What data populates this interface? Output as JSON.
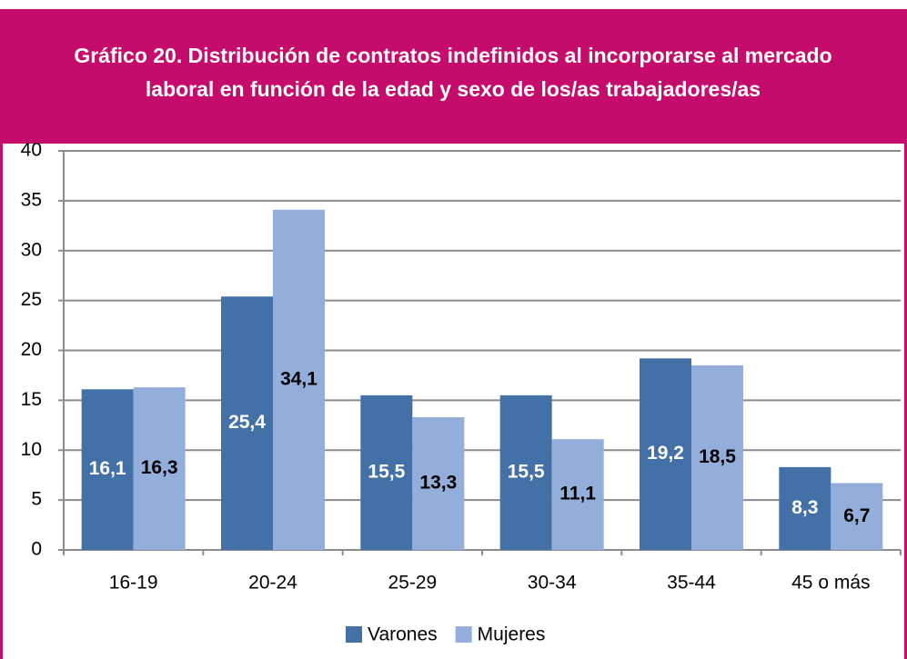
{
  "chart_data": {
    "type": "bar",
    "title": [
      "Gráfico 20. Distribución de contratos indefinidos al incorporarse al mercado",
      "laboral en función de la edad y sexo de los/as trabajadores/as"
    ],
    "categories": [
      "16-19",
      "20-24",
      "25-29",
      "30-34",
      "35-44",
      "45 o más"
    ],
    "series": [
      {
        "name": "Varones",
        "color": "#4470a8",
        "label_color": "#ffffff",
        "values": [
          16.1,
          25.4,
          15.5,
          15.5,
          19.2,
          8.3
        ],
        "value_labels": [
          "16,1",
          "25,4",
          "15,5",
          "15,5",
          "19,2",
          "8,3"
        ]
      },
      {
        "name": "Mujeres",
        "color": "#93aedb",
        "label_color": "#000000",
        "values": [
          16.3,
          34.1,
          13.3,
          11.1,
          18.5,
          6.7
        ],
        "value_labels": [
          "16,3",
          "34,1",
          "13,3",
          "11,1",
          "18,5",
          "6,7"
        ]
      }
    ],
    "ylim": [
      0,
      40
    ],
    "yticks": [
      0,
      5,
      10,
      15,
      20,
      25,
      30,
      35,
      40
    ],
    "grid": true,
    "legend": "bottom"
  }
}
